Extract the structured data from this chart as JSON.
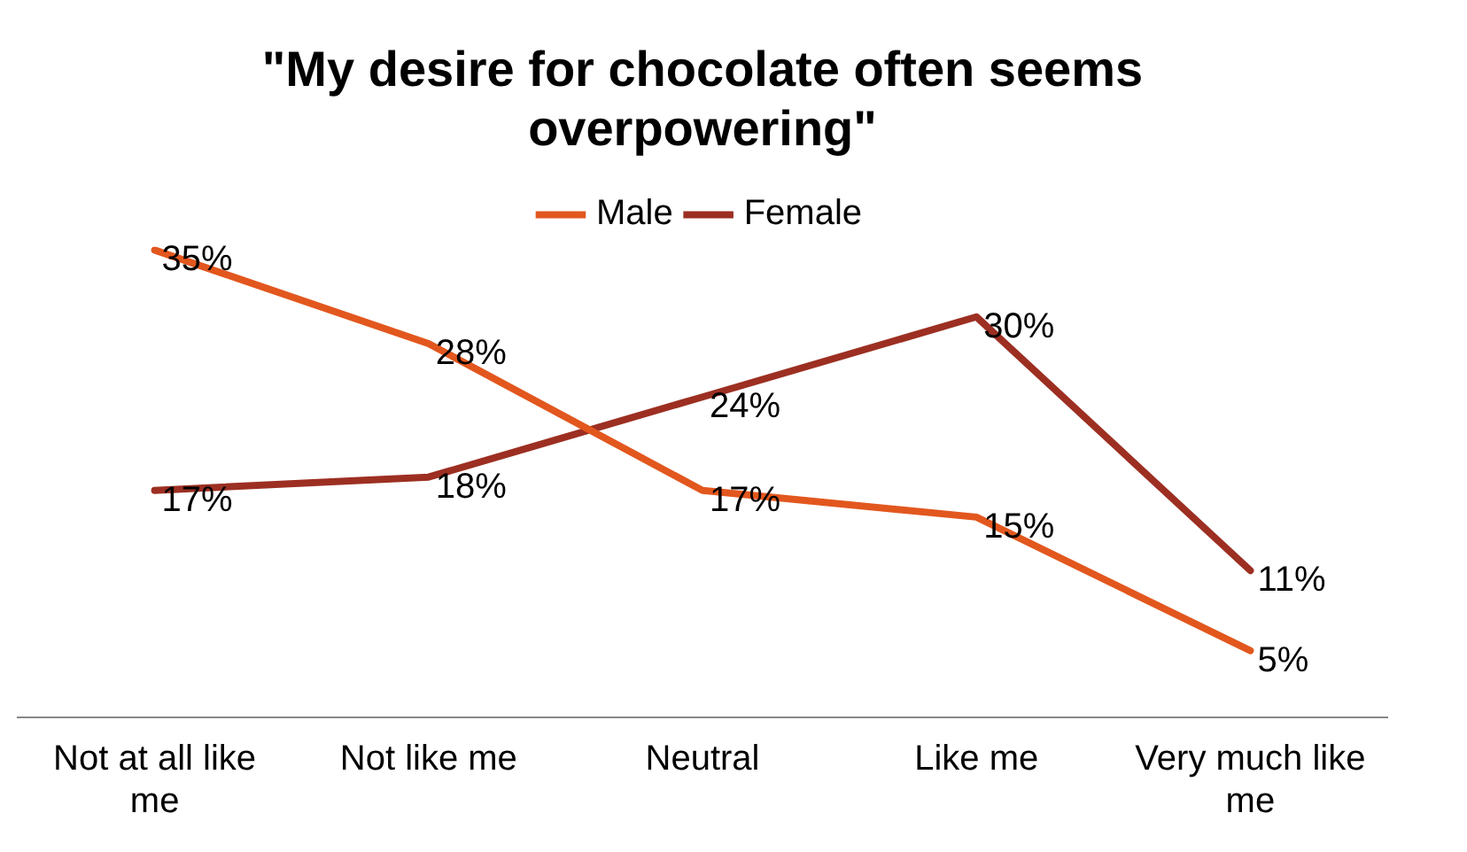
{
  "chart_data": {
    "type": "line",
    "title": "\"My desire for chocolate often seems overpowering\"",
    "categories": [
      "Not at all like me",
      "Not like me",
      "Neutral",
      "Like me",
      "Very much like me"
    ],
    "series": [
      {
        "name": "Male",
        "color": "#e2571e",
        "values": [
          35,
          28,
          17,
          15,
          5
        ],
        "value_labels": [
          "35%",
          "28%",
          "17%",
          "15%",
          "5%"
        ]
      },
      {
        "name": "Female",
        "color": "#9c2f22",
        "values": [
          17,
          18,
          24,
          30,
          11
        ],
        "value_labels": [
          "17%",
          "18%",
          "24%",
          "30%",
          "11%"
        ]
      }
    ],
    "legend": "top",
    "marker": "none",
    "line_style": "solid"
  }
}
